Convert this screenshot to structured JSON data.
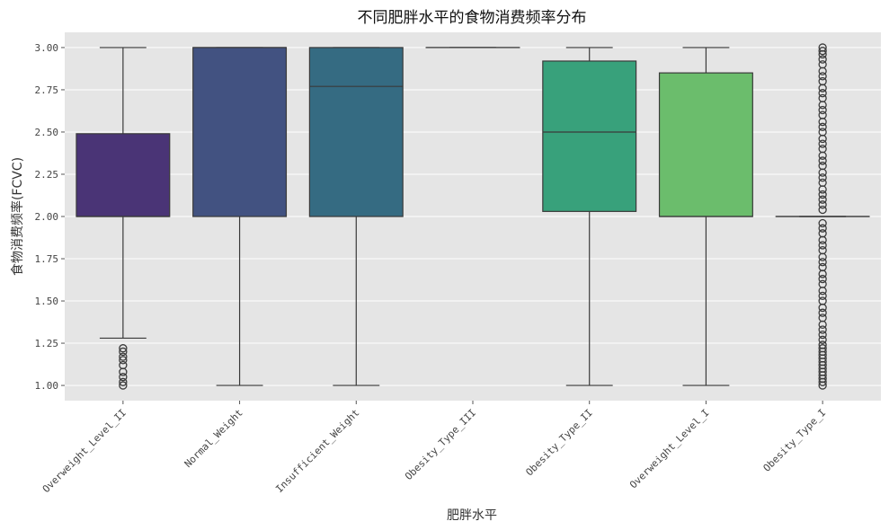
{
  "chart_data": {
    "type": "box",
    "title": "不同肥胖水平的食物消费频率分布",
    "xlabel": "肥胖水平",
    "ylabel": "食物消费频率(FCVC)",
    "ylim": [
      0.91,
      3.09
    ],
    "yticks": [
      "1.00",
      "1.25",
      "1.50",
      "1.75",
      "2.00",
      "2.25",
      "2.50",
      "2.75",
      "3.00"
    ],
    "ytick_values": [
      1.0,
      1.25,
      1.5,
      1.75,
      2.0,
      2.25,
      2.5,
      2.75,
      3.0
    ],
    "grid": true,
    "background": "#e5e5e5",
    "categories": [
      "Overweight_Level_II",
      "Normal_Weight",
      "Insufficient_Weight",
      "Obesity_Type_III",
      "Obesity_Type_II",
      "Overweight_Level_I",
      "Obesity_Type_I"
    ],
    "boxes": [
      {
        "category": "Overweight_Level_II",
        "whisker_low": 1.28,
        "q1": 2.0,
        "median": 2.0,
        "q3": 2.49,
        "whisker_high": 3.0,
        "color": "#4a3476",
        "outliers": [
          1.0,
          1.02,
          1.05,
          1.08,
          1.12,
          1.15,
          1.17,
          1.2,
          1.22
        ]
      },
      {
        "category": "Normal_Weight",
        "whisker_low": 1.0,
        "q1": 2.0,
        "median": 3.0,
        "q3": 3.0,
        "whisker_high": 3.0,
        "color": "#425281",
        "outliers": []
      },
      {
        "category": "Insufficient_Weight",
        "whisker_low": 1.0,
        "q1": 2.0,
        "median": 2.77,
        "q3": 3.0,
        "whisker_high": 3.0,
        "color": "#356b82",
        "outliers": []
      },
      {
        "category": "Obesity_Type_III",
        "whisker_low": 3.0,
        "q1": 3.0,
        "median": 3.0,
        "q3": 3.0,
        "whisker_high": 3.0,
        "color": "#2b8a84",
        "outliers": []
      },
      {
        "category": "Obesity_Type_II",
        "whisker_low": 1.0,
        "q1": 2.03,
        "median": 2.5,
        "q3": 2.92,
        "whisker_high": 3.0,
        "color": "#38a17b",
        "outliers": []
      },
      {
        "category": "Overweight_Level_I",
        "whisker_low": 1.0,
        "q1": 2.0,
        "median": 2.0,
        "q3": 2.85,
        "whisker_high": 3.0,
        "color": "#6bbd6c",
        "outliers": []
      },
      {
        "category": "Obesity_Type_I",
        "whisker_low": 2.0,
        "q1": 2.0,
        "median": 2.0,
        "q3": 2.0,
        "whisker_high": 2.0,
        "color": "#bcd847",
        "outliers": [
          1.0,
          1.02,
          1.04,
          1.06,
          1.08,
          1.1,
          1.12,
          1.14,
          1.16,
          1.18,
          1.2,
          1.22,
          1.24,
          1.27,
          1.3,
          1.33,
          1.36,
          1.4,
          1.43,
          1.46,
          1.5,
          1.53,
          1.56,
          1.6,
          1.63,
          1.66,
          1.7,
          1.73,
          1.76,
          1.8,
          1.83,
          1.86,
          1.9,
          1.93,
          1.96,
          2.04,
          2.07,
          2.1,
          2.13,
          2.16,
          2.2,
          2.23,
          2.26,
          2.3,
          2.33,
          2.36,
          2.4,
          2.43,
          2.46,
          2.5,
          2.53,
          2.56,
          2.6,
          2.63,
          2.66,
          2.7,
          2.73,
          2.76,
          2.8,
          2.83,
          2.86,
          2.9,
          2.93,
          2.96,
          2.98,
          3.0
        ]
      }
    ]
  }
}
